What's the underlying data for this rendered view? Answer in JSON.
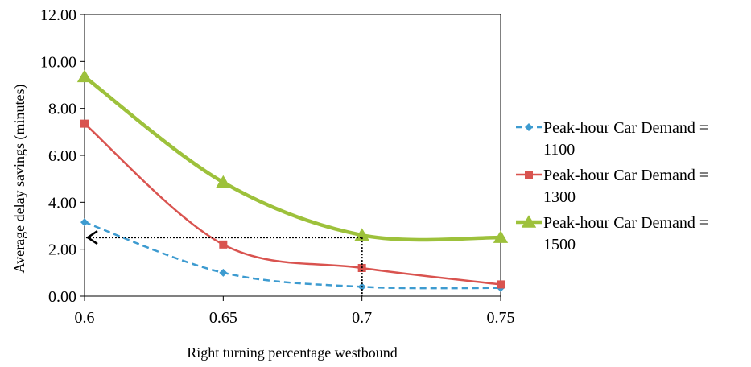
{
  "chart_data": {
    "type": "line",
    "title": "",
    "xlabel": "Right turning percentage westbound",
    "ylabel": "Average delay savings (minutes)",
    "x": [
      0.6,
      0.65,
      0.7,
      0.75
    ],
    "x_tick_labels": [
      "0.6",
      "0.65",
      "0.7",
      "0.75"
    ],
    "xlim": [
      0.6,
      0.75
    ],
    "ylim": [
      0,
      12
    ],
    "y_tick_labels": [
      "0.00",
      "2.00",
      "4.00",
      "6.00",
      "8.00",
      "10.00",
      "12.00"
    ],
    "y_ticks": [
      0,
      2,
      4,
      6,
      8,
      10,
      12
    ],
    "grid": false,
    "legend_position": "right",
    "series": [
      {
        "name": "Peak-hour Car Demand = 1100",
        "legend_lines": [
          "Peak-hour Car Demand =",
          "1100"
        ],
        "values": [
          3.15,
          1.0,
          0.4,
          0.35
        ],
        "color": "#3d9bd0",
        "line_style": "dashed",
        "marker": "diamond"
      },
      {
        "name": "Peak-hour Car Demand = 1300",
        "legend_lines": [
          "Peak-hour Car Demand =",
          "1300"
        ],
        "values": [
          7.35,
          2.2,
          1.2,
          0.5
        ],
        "color": "#d9534f",
        "line_style": "solid",
        "marker": "square"
      },
      {
        "name": "Peak-hour Car Demand = 1500",
        "legend_lines": [
          "Peak-hour Car Demand =",
          "1500"
        ],
        "values": [
          9.35,
          4.85,
          2.6,
          2.5
        ],
        "color": "#9dc13b",
        "line_style": "solid",
        "marker": "triangle"
      }
    ],
    "annotation": {
      "description": "dotted guide from series 1500 at x=0.7 down to the x-axis and across to the y-axis with an arrow",
      "x": 0.7,
      "y": 2.5
    }
  }
}
